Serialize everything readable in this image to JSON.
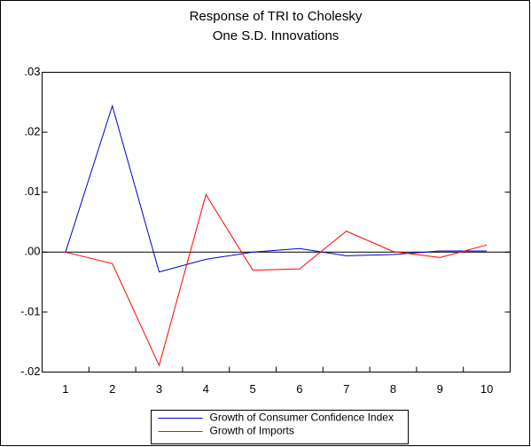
{
  "chart_data": {
    "type": "line",
    "title": "Response of TRI to Cholesky",
    "subtitle": "One S.D. Innovations",
    "categories": [
      "1",
      "2",
      "3",
      "4",
      "5",
      "6",
      "7",
      "8",
      "9",
      "10"
    ],
    "series": [
      {
        "name": "Growth of Consumer Confidence Index",
        "color": "#0000cc",
        "values": [
          0,
          0.0244,
          -0.0033,
          -0.0012,
          0,
          0.0006,
          -0.0006,
          -0.0004,
          0.0002,
          0.0002
        ]
      },
      {
        "name": "Growth of Imports",
        "color": "#ff0000",
        "values": [
          0,
          -0.0019,
          -0.0189,
          0.0096,
          -0.003,
          -0.0028,
          0.0035,
          0.0001,
          -0.0009,
          0.0012
        ]
      }
    ],
    "ylim": [
      -0.02,
      0.03
    ],
    "yticks": [
      {
        "value": 0.03,
        "label": ".03"
      },
      {
        "value": 0.02,
        "label": ".02"
      },
      {
        "value": 0.01,
        "label": ".01"
      },
      {
        "value": 0,
        "label": ".00"
      },
      {
        "value": -0.01,
        "label": "-.01"
      },
      {
        "value": -0.02,
        "label": "-.02"
      }
    ],
    "legend": "bottom"
  }
}
